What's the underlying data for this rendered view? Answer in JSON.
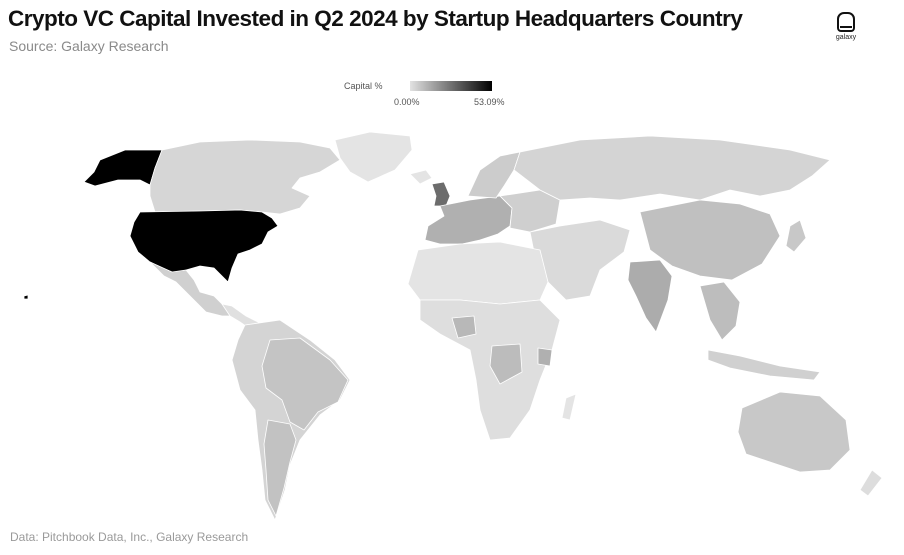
{
  "header": {
    "title": "Crypto VC Capital Invested  in Q2 2024 by Startup Headquarters Country",
    "subtitle": "Source: Galaxy Research"
  },
  "logo": {
    "text": "galaxy"
  },
  "legend": {
    "title": "Capital %",
    "min_label": "0.00%",
    "max_label": "53.09%",
    "color_low": "#e2e2e2",
    "color_high": "#000000"
  },
  "footer": {
    "note": "Data: Pitchbook Data, Inc., Galaxy Research"
  },
  "colors": {
    "no_data": "#e4e4e4",
    "low": "#d0d0d0",
    "mid": "#b2b2b2",
    "high": "#8e8e8e",
    "max": "#000000",
    "border": "#ffffff"
  }
}
